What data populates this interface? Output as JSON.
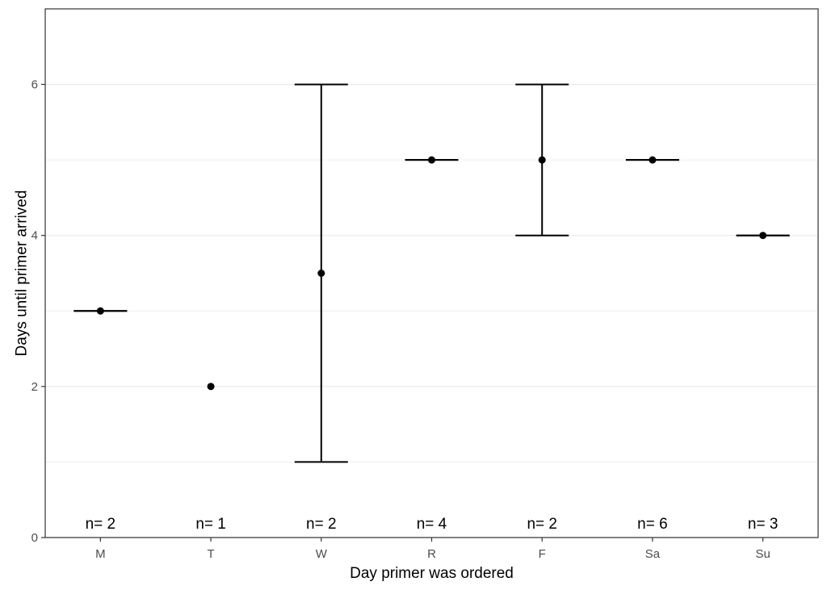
{
  "chart_data": {
    "type": "scatter",
    "title": "",
    "xlabel": "Day primer was ordered",
    "ylabel": "Days until primer arrived",
    "categories": [
      "M",
      "T",
      "W",
      "R",
      "F",
      "Sa",
      "Su"
    ],
    "means": [
      3,
      2,
      3.5,
      5,
      5,
      5,
      4
    ],
    "error_low": [
      3,
      null,
      1,
      5,
      4,
      5,
      4
    ],
    "error_high": [
      3,
      null,
      6,
      5,
      6,
      5,
      4
    ],
    "n_labels": [
      "n= 2",
      "n= 1",
      "n= 2",
      "n= 4",
      "n= 2",
      "n= 6",
      "n= 3"
    ],
    "ylim": [
      0,
      7
    ],
    "yticks": [
      0,
      2,
      4,
      6
    ],
    "ytick_labels": [
      "0",
      "2",
      "4",
      "6"
    ],
    "grid": true,
    "legend": "none"
  },
  "colors": {
    "point": "#000000",
    "errorbar": "#000000",
    "grid": "#ebebeb",
    "panel_border": "#333333",
    "background": "#ffffff"
  }
}
